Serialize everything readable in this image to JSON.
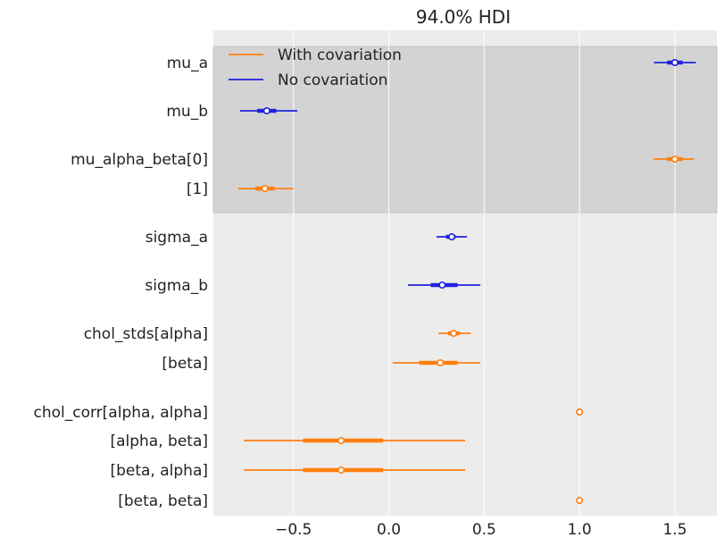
{
  "chart_data": {
    "type": "forest",
    "title": "94.0% HDI",
    "xlabel": "",
    "ylabel": "",
    "xlim": [
      -0.92,
      1.72
    ],
    "xticks": [
      -0.5,
      0.0,
      0.5,
      1.0,
      1.5
    ],
    "xtick_labels": [
      "−0.5",
      "0.0",
      "0.5",
      "1.0",
      "1.5"
    ],
    "grid": true,
    "legend_position": "top-left",
    "legend": [
      {
        "name": "With covariation",
        "color": "#ff7f0e"
      },
      {
        "name": "No covariation",
        "color": "#2222dd"
      }
    ],
    "colors": {
      "plot_background": "#ececec",
      "highlight_band": "#d3d3d3",
      "grid": "#ffffff"
    },
    "rows": [
      {
        "label": "mu_a",
        "series": "No covariation",
        "mean": 1.5,
        "hdi_low": 1.39,
        "hdi_high": 1.61,
        "iqr_low": 1.46,
        "iqr_high": 1.54
      },
      {
        "label": "mu_b",
        "series": "No covariation",
        "mean": -0.64,
        "hdi_low": -0.78,
        "hdi_high": -0.48,
        "iqr_low": -0.69,
        "iqr_high": -0.59
      },
      {
        "label": "mu_alpha_beta[0]",
        "series": "With covariation",
        "mean": 1.5,
        "hdi_low": 1.39,
        "hdi_high": 1.6,
        "iqr_low": 1.46,
        "iqr_high": 1.54
      },
      {
        "label": "[1]",
        "series": "With covariation",
        "mean": -0.65,
        "hdi_low": -0.79,
        "hdi_high": -0.5,
        "iqr_low": -0.7,
        "iqr_high": -0.6
      },
      {
        "label": "sigma_a",
        "series": "No covariation",
        "mean": 0.33,
        "hdi_low": 0.25,
        "hdi_high": 0.41,
        "iqr_low": 0.3,
        "iqr_high": 0.35
      },
      {
        "label": "sigma_b",
        "series": "No covariation",
        "mean": 0.28,
        "hdi_low": 0.1,
        "hdi_high": 0.48,
        "iqr_low": 0.22,
        "iqr_high": 0.36
      },
      {
        "label": "chol_stds[alpha]",
        "series": "With covariation",
        "mean": 0.34,
        "hdi_low": 0.26,
        "hdi_high": 0.43,
        "iqr_low": 0.31,
        "iqr_high": 0.37
      },
      {
        "label": "[beta]",
        "series": "With covariation",
        "mean": 0.27,
        "hdi_low": 0.02,
        "hdi_high": 0.48,
        "iqr_low": 0.16,
        "iqr_high": 0.36
      },
      {
        "label": "chol_corr[alpha, alpha]",
        "series": "With covariation",
        "mean": 1.0,
        "hdi_low": 1.0,
        "hdi_high": 1.0,
        "iqr_low": 1.0,
        "iqr_high": 1.0
      },
      {
        "label": "[alpha, beta]",
        "series": "With covariation",
        "mean": -0.25,
        "hdi_low": -0.76,
        "hdi_high": 0.4,
        "iqr_low": -0.45,
        "iqr_high": -0.03
      },
      {
        "label": "[beta, alpha]",
        "series": "With covariation",
        "mean": -0.25,
        "hdi_low": -0.76,
        "hdi_high": 0.4,
        "iqr_low": -0.45,
        "iqr_high": -0.03
      },
      {
        "label": "[beta, beta]",
        "series": "With covariation",
        "mean": 1.0,
        "hdi_low": 1.0,
        "hdi_high": 1.0,
        "iqr_low": 1.0,
        "iqr_high": 1.0
      }
    ]
  }
}
